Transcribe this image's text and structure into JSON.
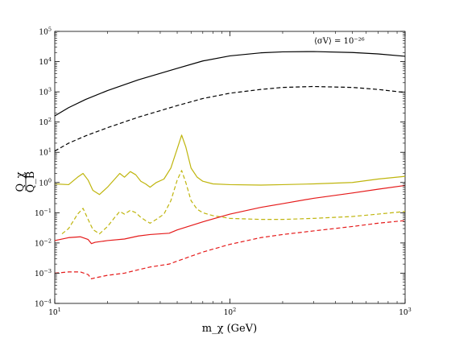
{
  "chart_data": {
    "type": "line",
    "xlabel": "m_χ (GeV)",
    "ylabel_num": "Q_χ",
    "ylabel_den": "Q_B",
    "annotation": "⟨σV⟩ = 10⁻²⁶",
    "xscale": "log",
    "yscale": "log",
    "xlim": [
      10,
      1000
    ],
    "ylim": [
      0.0001,
      100000
    ],
    "grid": false,
    "x_ticks": [
      {
        "value": 10,
        "base": "10",
        "exp": "1"
      },
      {
        "value": 100,
        "base": "10",
        "exp": "2"
      },
      {
        "value": 1000,
        "base": "10",
        "exp": "3"
      }
    ],
    "y_ticks": [
      {
        "value": 0.0001,
        "base": "10",
        "exp": "−4"
      },
      {
        "value": 0.001,
        "base": "10",
        "exp": "−3"
      },
      {
        "value": 0.01,
        "base": "10",
        "exp": "−2"
      },
      {
        "value": 0.1,
        "base": "10",
        "exp": "−1"
      },
      {
        "value": 1,
        "base": "10",
        "exp": "0"
      },
      {
        "value": 10,
        "base": "10",
        "exp": "1"
      },
      {
        "value": 100,
        "base": "10",
        "exp": "2"
      },
      {
        "value": 1000,
        "base": "10",
        "exp": "3"
      },
      {
        "value": 10000,
        "base": "10",
        "exp": "4"
      },
      {
        "value": 100000,
        "base": "10",
        "exp": "5"
      }
    ],
    "series": [
      {
        "color": "#000000",
        "dash": "solid",
        "x": [
          10,
          12,
          15,
          20,
          30,
          50,
          70,
          100,
          150,
          200,
          300,
          500,
          700,
          1000
        ],
        "y": [
          160,
          300,
          560,
          1100,
          2500,
          6000,
          10500,
          15500,
          19500,
          21000,
          21500,
          20000,
          18000,
          15000
        ]
      },
      {
        "color": "#000000",
        "dash": "dashed",
        "x": [
          10,
          12,
          15,
          20,
          30,
          50,
          70,
          100,
          150,
          200,
          300,
          500,
          700,
          1000
        ],
        "y": [
          11,
          20,
          35,
          65,
          145,
          350,
          600,
          900,
          1200,
          1400,
          1500,
          1400,
          1200,
          950
        ]
      },
      {
        "color": "#bfb50d",
        "dash": "solid",
        "x": [
          10,
          12,
          13.5,
          14.5,
          15.5,
          16.5,
          18,
          20,
          22,
          23.5,
          25,
          27,
          29,
          31,
          33,
          35,
          38,
          42,
          46,
          50,
          53,
          56,
          60,
          65,
          70,
          80,
          100,
          150,
          200,
          300,
          500,
          700,
          1000
        ],
        "y": [
          0.9,
          0.85,
          1.5,
          2.0,
          1.2,
          0.55,
          0.4,
          0.7,
          1.3,
          2.0,
          1.5,
          2.3,
          1.8,
          1.1,
          0.9,
          0.7,
          1.0,
          1.3,
          3.0,
          13.0,
          37.0,
          15.0,
          3.0,
          1.5,
          1.1,
          0.9,
          0.85,
          0.82,
          0.85,
          0.9,
          1.0,
          1.3,
          1.6
        ]
      },
      {
        "color": "#bfb50d",
        "dash": "dashed",
        "x": [
          11,
          12,
          13.5,
          14.5,
          15.5,
          16.5,
          18,
          20,
          22,
          23.5,
          25,
          27,
          29,
          31,
          33,
          35,
          38,
          42,
          46,
          50,
          53,
          56,
          60,
          65,
          70,
          80,
          100,
          150,
          200,
          300,
          500,
          700,
          1000
        ],
        "y": [
          0.02,
          0.03,
          0.09,
          0.14,
          0.06,
          0.028,
          0.02,
          0.035,
          0.07,
          0.11,
          0.09,
          0.12,
          0.1,
          0.07,
          0.055,
          0.045,
          0.06,
          0.09,
          0.25,
          1.2,
          2.5,
          1.0,
          0.25,
          0.13,
          0.1,
          0.08,
          0.065,
          0.06,
          0.06,
          0.065,
          0.075,
          0.09,
          0.11
        ]
      },
      {
        "color": "#e51a1a",
        "dash": "solid",
        "x": [
          10,
          12,
          14,
          15.5,
          16.2,
          17,
          20,
          25,
          30,
          35,
          40,
          45,
          50,
          70,
          100,
          150,
          200,
          300,
          500,
          700,
          1000
        ],
        "y": [
          0.012,
          0.015,
          0.016,
          0.013,
          0.0095,
          0.0105,
          0.012,
          0.0135,
          0.017,
          0.019,
          0.02,
          0.021,
          0.027,
          0.05,
          0.09,
          0.15,
          0.2,
          0.3,
          0.45,
          0.6,
          0.8
        ]
      },
      {
        "color": "#e51a1a",
        "dash": "dashed",
        "x": [
          10,
          12,
          14,
          15.5,
          16.2,
          17,
          20,
          25,
          30,
          35,
          40,
          45,
          50,
          70,
          100,
          150,
          200,
          300,
          500,
          700,
          1000
        ],
        "y": [
          0.001,
          0.0011,
          0.0011,
          0.0009,
          0.00065,
          0.0007,
          0.00085,
          0.001,
          0.0013,
          0.0016,
          0.0018,
          0.002,
          0.0025,
          0.005,
          0.009,
          0.015,
          0.019,
          0.025,
          0.035,
          0.045,
          0.055
        ]
      }
    ]
  }
}
